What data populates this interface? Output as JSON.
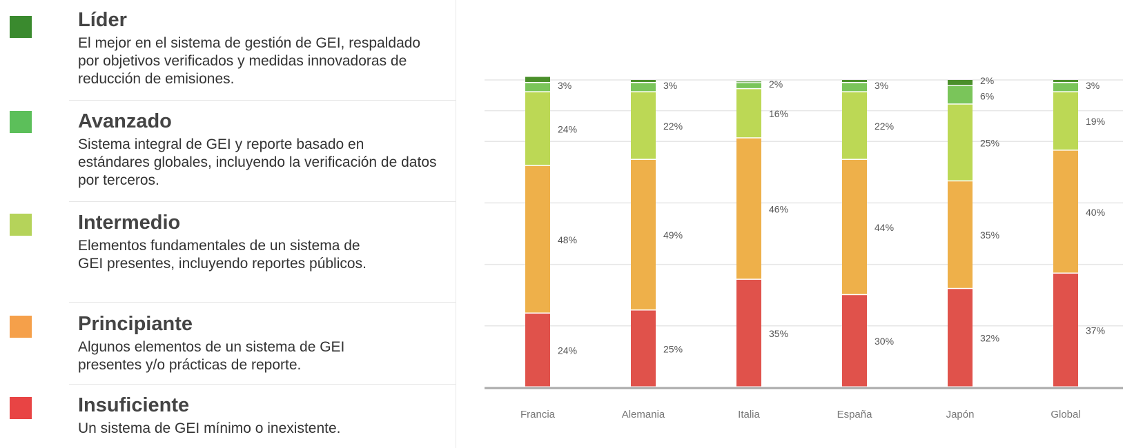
{
  "legend": [
    {
      "title": "Líder",
      "description": "El mejor en el sistema de gestión de GEI, respaldado por objetivos verificados y medidas innovadoras de reducción de emisiones.",
      "color": "#3a8a2e"
    },
    {
      "title": "Avanzado",
      "description": "Sistema integral de GEI y reporte basado en estándares globales, incluyendo la verificación de datos por terceros.",
      "color": "#5cbf5a"
    },
    {
      "title": "Intermedio",
      "description": "Elementos fundamentales de un sistema de GEI presentes, incluyendo reportes públicos.",
      "color": "#b5d35a"
    },
    {
      "title": "Principiante",
      "description": "Algunos elementos de un sistema de GEI presentes y/o prácticas de reporte.",
      "color": "#f5a04a"
    },
    {
      "title": "Insuficiente",
      "description": "Un sistema de GEI mínimo o inexistente.",
      "color": "#e84444"
    }
  ],
  "chart_data": {
    "type": "bar",
    "stacked": true,
    "categories": [
      "Francia",
      "Alemania",
      "Italia",
      "España",
      "Japón",
      "Global"
    ],
    "series": [
      {
        "name": "Insuficiente",
        "color": "#e0524b",
        "values": [
          24,
          25,
          35,
          30,
          32,
          37
        ],
        "labels": [
          "24%",
          "25%",
          "35%",
          "30%",
          "32%",
          "37%"
        ]
      },
      {
        "name": "Principiante",
        "color": "#eeb04a",
        "values": [
          48,
          49,
          46,
          44,
          35,
          40
        ],
        "labels": [
          "48%",
          "49%",
          "46%",
          "44%",
          "35%",
          "40%"
        ]
      },
      {
        "name": "Intermedio",
        "color": "#bcd855",
        "values": [
          24,
          22,
          16,
          22,
          25,
          19
        ],
        "labels": [
          "24%",
          "22%",
          "16%",
          "22%",
          "25%",
          "19%"
        ]
      },
      {
        "name": "Avanzado",
        "color": "#7ac55a",
        "values": [
          3,
          3,
          2,
          3,
          6,
          3
        ],
        "labels": [
          "3%",
          "3%",
          "2%",
          "3%",
          "6%",
          "3%"
        ]
      },
      {
        "name": "Líder",
        "color": "#4a8f2a",
        "values": [
          2,
          1,
          0.5,
          1,
          2,
          1
        ],
        "labels": [
          "",
          "",
          "",
          "",
          "2%",
          ""
        ]
      }
    ],
    "ylim": [
      0,
      100
    ],
    "grid": true,
    "legend_placement": "left"
  }
}
